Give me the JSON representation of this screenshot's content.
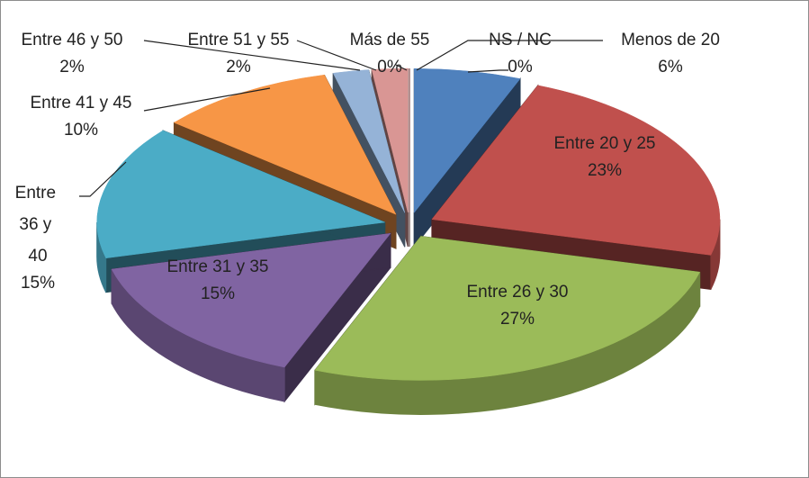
{
  "chart_data": {
    "type": "pie3d",
    "categories": [
      "Menos de 20",
      "Entre 20 y 25",
      "Entre 26 y 30",
      "Entre 31 y 35",
      "Entre 36 y 40",
      "Entre 41 y 45",
      "Entre 46 y 50",
      "Entre 51 y 55",
      "Más de 55",
      "NS / NC"
    ],
    "values": [
      6,
      23,
      27,
      15,
      15,
      10,
      2,
      2,
      0,
      0
    ],
    "value_labels": [
      "6%",
      "23%",
      "27%",
      "15%",
      "15%",
      "10%",
      "2%",
      "2%",
      "0%",
      "0%"
    ],
    "colors": [
      "#4f81bd",
      "#c0504d",
      "#9bbb59",
      "#8064a2",
      "#4bacc6",
      "#f79646",
      "#95b3d7",
      "#d99694",
      "#2c4d75",
      "#772c2a"
    ]
  }
}
